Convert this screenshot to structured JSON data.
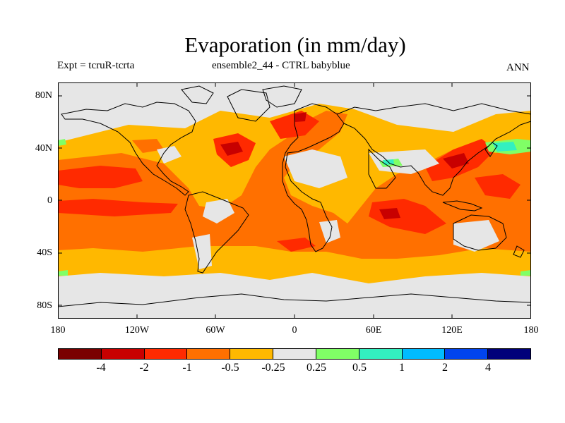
{
  "title": "Evaporation (in mm/day)",
  "subtitle_left": "Expt = tcruR-tcrta",
  "subtitle_center": "ensemble2_44 - CTRL babyblue",
  "subtitle_right": "ANN",
  "y_axis_labels": [
    "80N",
    "40N",
    "0",
    "40S",
    "80S"
  ],
  "x_axis_labels": [
    "180",
    "120W",
    "60W",
    "0",
    "60E",
    "120E",
    "180"
  ],
  "colorbar": {
    "colors": [
      "#7a0000",
      "#c80000",
      "#ff2a00",
      "#ff7000",
      "#ffb800",
      "#e6e6e6",
      "#80ff66",
      "#33f0c0",
      "#00bbff",
      "#0044ee",
      "#00007a"
    ],
    "labels": [
      "-4",
      "-2",
      "-1",
      "-0.5",
      "-0.25",
      "0.25",
      "0.5",
      "1",
      "2",
      "4"
    ]
  }
}
